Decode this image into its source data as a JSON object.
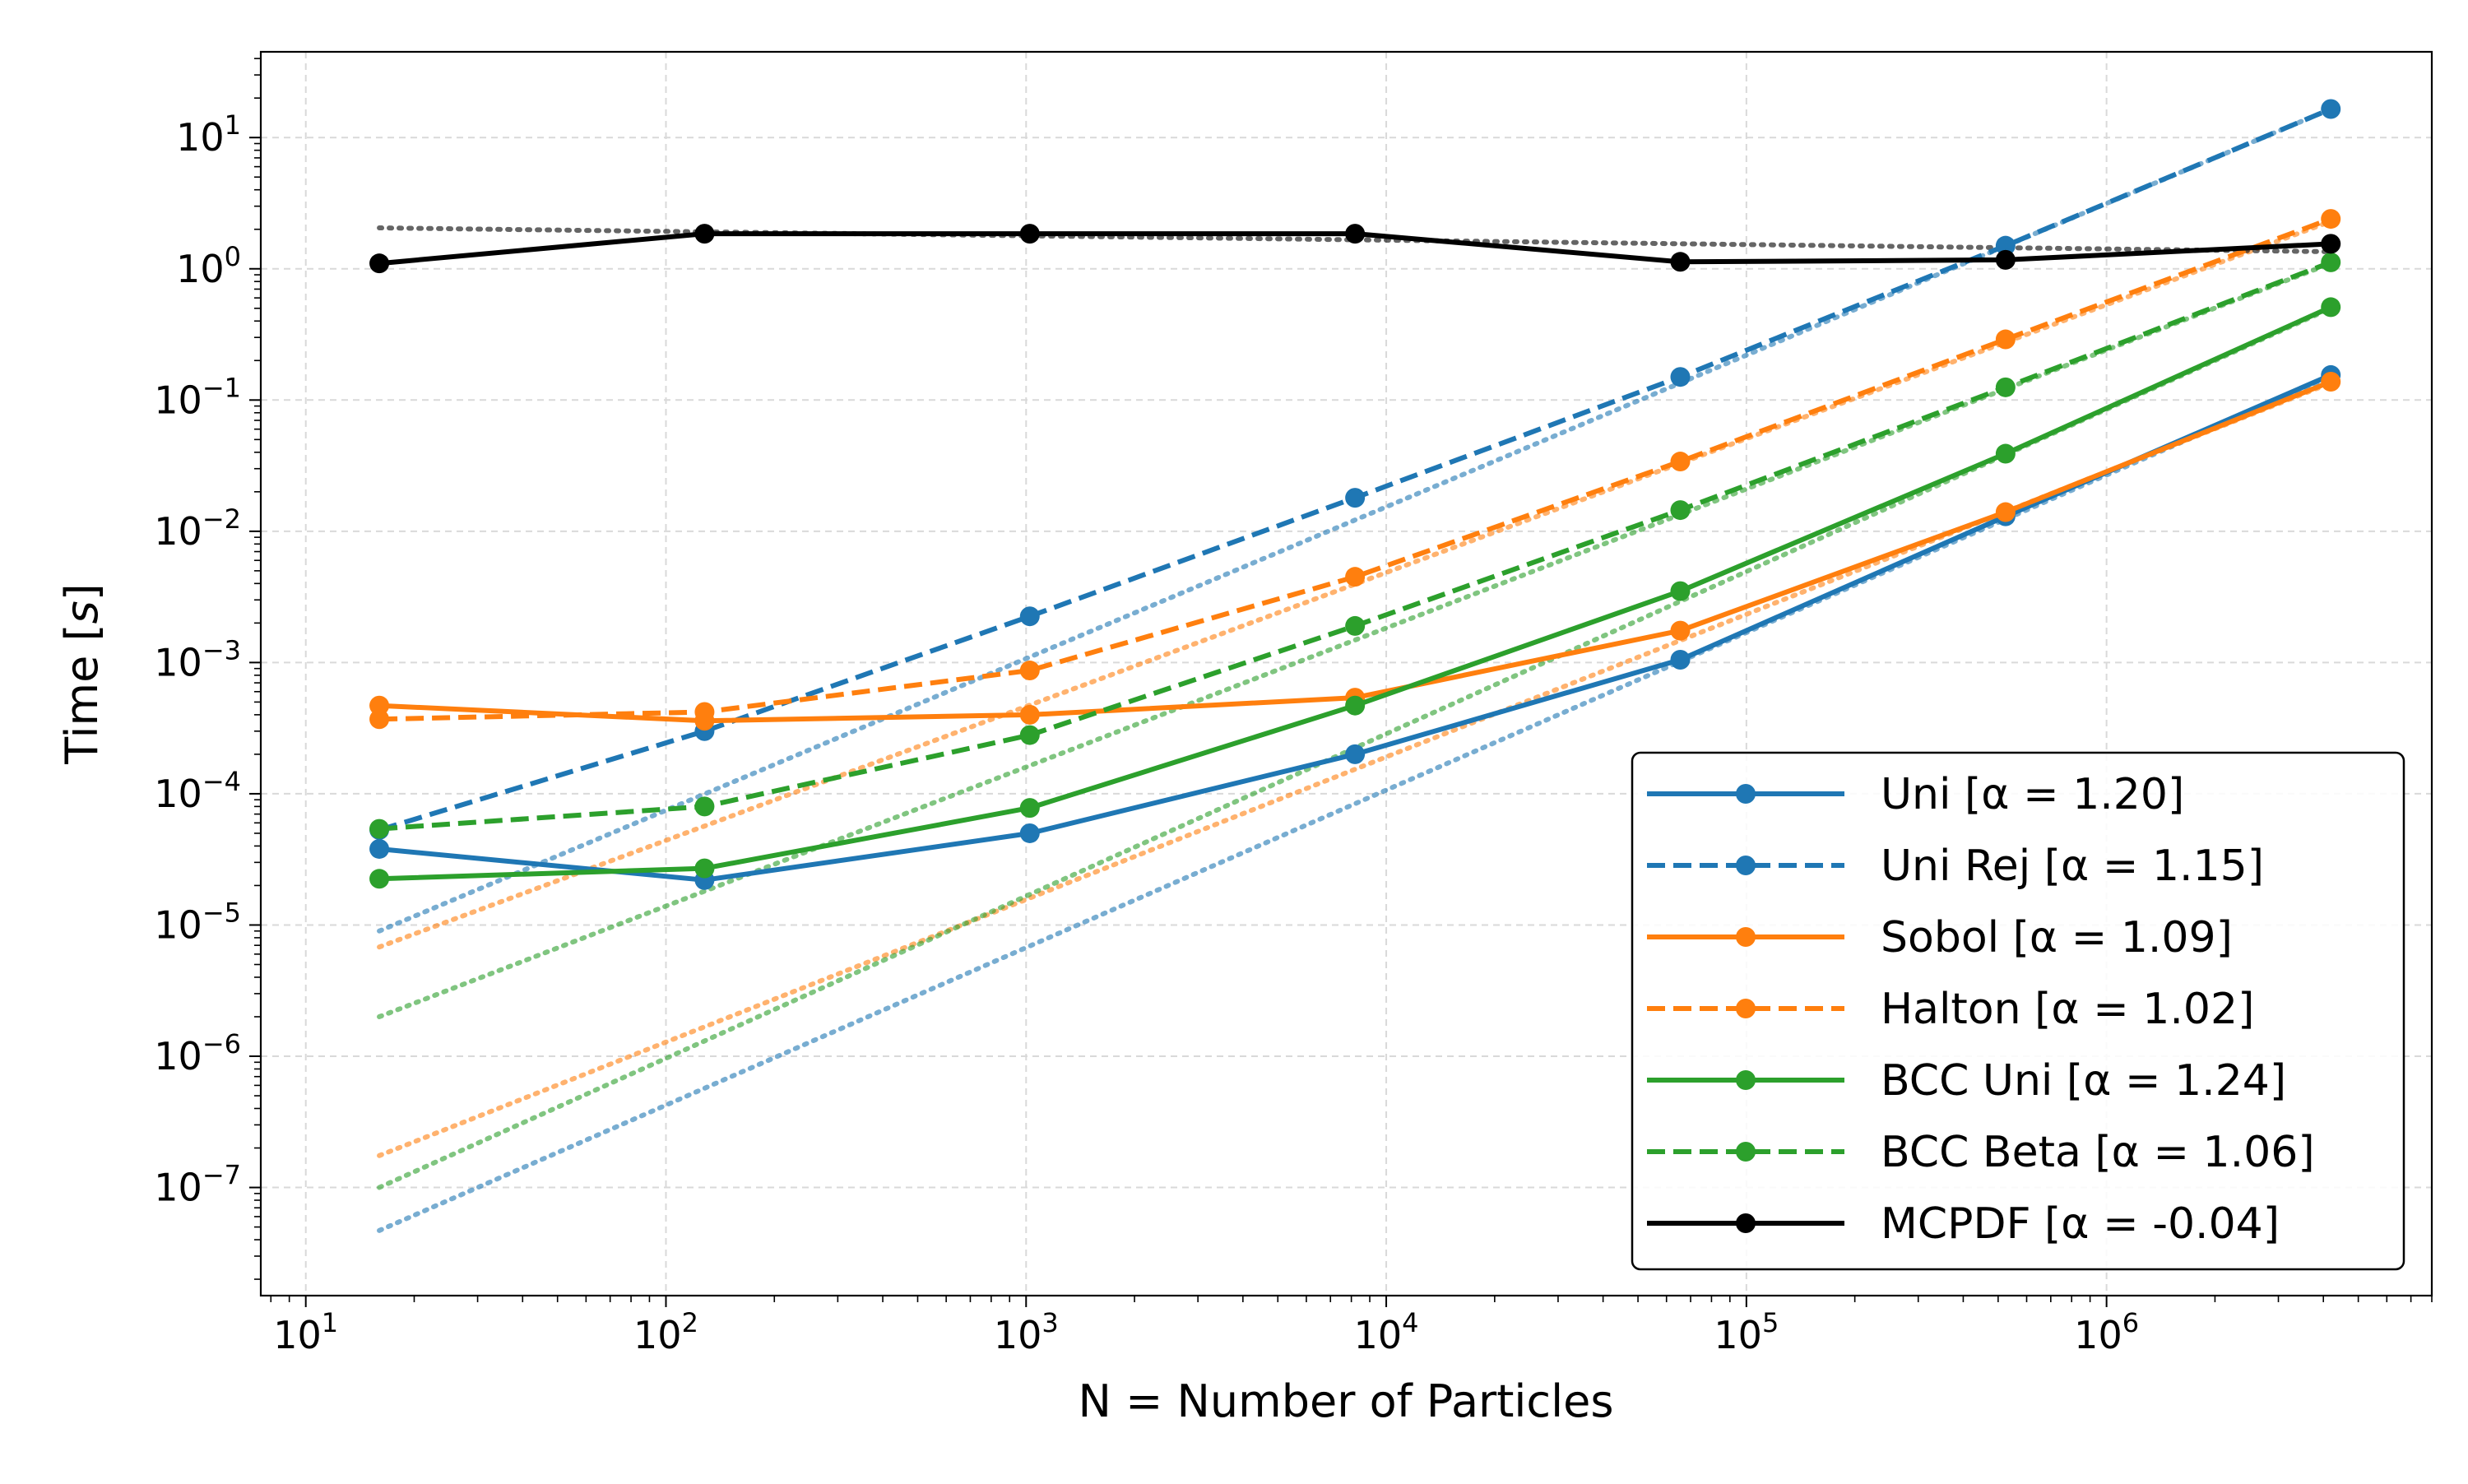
{
  "chart_data": {
    "type": "line",
    "title": "",
    "xlabel": "N = Number of Particles",
    "ylabel": "Time [s]",
    "xscale": "log",
    "yscale": "log",
    "xlim": [
      7.5,
      8000000
    ],
    "ylim": [
      1.5e-08,
      45
    ],
    "grid": true,
    "legend_loc": "lower-right",
    "x": [
      16,
      128,
      1024,
      8192,
      65536,
      524288,
      4194304
    ],
    "x_ticks": [
      {
        "value": 10,
        "base": "10",
        "exp": "1"
      },
      {
        "value": 100,
        "base": "10",
        "exp": "2"
      },
      {
        "value": 1000,
        "base": "10",
        "exp": "3"
      },
      {
        "value": 10000,
        "base": "10",
        "exp": "4"
      },
      {
        "value": 100000,
        "base": "10",
        "exp": "5"
      },
      {
        "value": 1000000,
        "base": "10",
        "exp": "6"
      }
    ],
    "y_ticks": [
      {
        "value": 1e-07,
        "base": "10",
        "exp": "−7"
      },
      {
        "value": 1e-06,
        "base": "10",
        "exp": "−6"
      },
      {
        "value": 1e-05,
        "base": "10",
        "exp": "−5"
      },
      {
        "value": 0.0001,
        "base": "10",
        "exp": "−4"
      },
      {
        "value": 0.001,
        "base": "10",
        "exp": "−3"
      },
      {
        "value": 0.01,
        "base": "10",
        "exp": "−2"
      },
      {
        "value": 0.1,
        "base": "10",
        "exp": "−1"
      },
      {
        "value": 1,
        "base": "10",
        "exp": "0"
      },
      {
        "value": 10,
        "base": "10",
        "exp": "1"
      }
    ],
    "series": [
      {
        "name": "Uni",
        "alpha_label": "[α = 1.20]",
        "color": "#1f77b4",
        "dash": "solid",
        "values": [
          3.8e-05,
          2.2e-05,
          5e-05,
          0.0002,
          0.00105,
          0.013,
          0.155
        ],
        "fit": [
          4.7e-08,
          0.15
        ]
      },
      {
        "name": "Uni Rej",
        "alpha_label": "[α = 1.15]",
        "color": "#1f77b4",
        "dash": "dashed",
        "values": [
          5.3e-05,
          0.0003,
          0.00225,
          0.018,
          0.15,
          1.5,
          16.5
        ],
        "fit": [
          9e-06,
          16.5
        ]
      },
      {
        "name": "Sobol",
        "alpha_label": "[α = 1.09]",
        "color": "#ff7f0e",
        "dash": "solid",
        "values": [
          0.00047,
          0.00036,
          0.0004,
          0.00054,
          0.00175,
          0.014,
          0.138
        ],
        "fit": [
          1.75e-07,
          0.135
        ]
      },
      {
        "name": "Halton",
        "alpha_label": "[α = 1.02]",
        "color": "#ff7f0e",
        "dash": "dashed",
        "values": [
          0.00037,
          0.00042,
          0.00087,
          0.0045,
          0.034,
          0.29,
          2.4
        ],
        "fit": [
          6.8e-06,
          2.3
        ]
      },
      {
        "name": "BCC Uni",
        "alpha_label": "[α = 1.24]",
        "color": "#2ca02c",
        "dash": "solid",
        "values": [
          2.25e-05,
          2.7e-05,
          7.8e-05,
          0.00047,
          0.0035,
          0.039,
          0.51
        ],
        "fit": [
          1e-07,
          0.5
        ]
      },
      {
        "name": "BCC Beta",
        "alpha_label": "[α = 1.06]",
        "color": "#2ca02c",
        "dash": "dashed",
        "values": [
          5.4e-05,
          8e-05,
          0.00028,
          0.0019,
          0.0145,
          0.125,
          1.12
        ],
        "fit": [
          2e-06,
          1.1
        ]
      },
      {
        "name": "MCPDF",
        "alpha_label": "[α = -0.04]",
        "color": "#000000",
        "dash": "solid",
        "values": [
          1.1,
          1.85,
          1.85,
          1.85,
          1.13,
          1.17,
          1.55
        ],
        "fit": [
          2.05,
          1.35
        ]
      }
    ]
  }
}
